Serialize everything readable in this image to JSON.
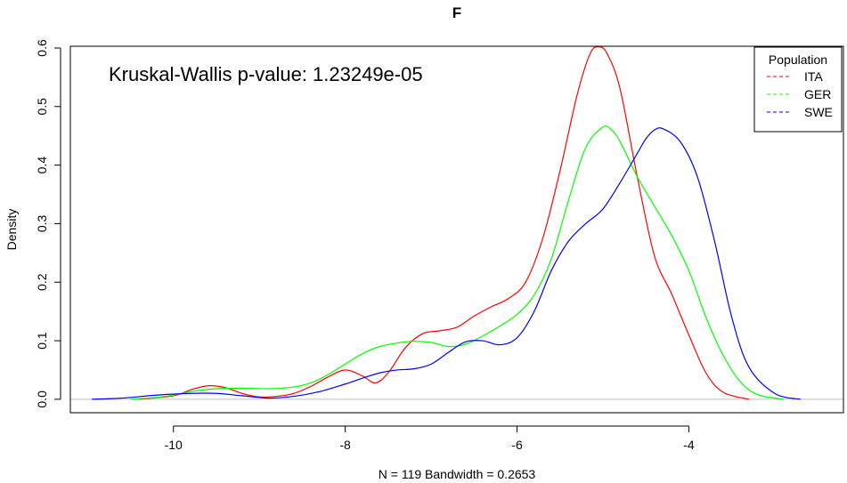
{
  "chart_data": {
    "type": "line",
    "title": "F",
    "xlabel": "N = 119   Bandwidth = 0.2653",
    "ylabel": "Density",
    "xlim": [
      -11.2,
      -2.2
    ],
    "ylim": [
      -0.023,
      0.603
    ],
    "xticks": [
      -10,
      -8,
      -6,
      -4
    ],
    "yticks": [
      0.0,
      0.1,
      0.2,
      0.3,
      0.4,
      0.5,
      0.6
    ],
    "xtick_labels": [
      "-10",
      "-8",
      "-6",
      "-4"
    ],
    "ytick_labels": [
      "0.0",
      "0.1",
      "0.2",
      "0.3",
      "0.4",
      "0.5",
      "0.6"
    ],
    "annotation": "Kruskal-Wallis p-value: 1.23249e-05",
    "grid": false,
    "legend": {
      "title": "Population",
      "placement": "top-right",
      "entries": [
        "ITA",
        "GER",
        "SWE"
      ]
    },
    "series": [
      {
        "name": "ITA",
        "color": "#ff0000",
        "x": [
          -10.4,
          -10.0,
          -9.8,
          -9.6,
          -9.4,
          -9.2,
          -9.0,
          -8.8,
          -8.6,
          -8.4,
          -8.2,
          -8.0,
          -7.8,
          -7.65,
          -7.5,
          -7.3,
          -7.1,
          -6.9,
          -6.7,
          -6.5,
          -6.3,
          -6.1,
          -5.9,
          -5.7,
          -5.5,
          -5.3,
          -5.15,
          -5.05,
          -4.95,
          -4.8,
          -4.6,
          -4.4,
          -4.2,
          -4.0,
          -3.8,
          -3.6,
          -3.3
        ],
        "y": [
          0.0,
          0.006,
          0.016,
          0.023,
          0.02,
          0.01,
          0.004,
          0.005,
          0.01,
          0.022,
          0.038,
          0.05,
          0.04,
          0.028,
          0.045,
          0.088,
          0.112,
          0.117,
          0.123,
          0.142,
          0.158,
          0.172,
          0.2,
          0.275,
          0.39,
          0.52,
          0.59,
          0.602,
          0.59,
          0.53,
          0.38,
          0.245,
          0.18,
          0.11,
          0.045,
          0.012,
          0.0
        ]
      },
      {
        "name": "GER",
        "color": "#00ff00",
        "x": [
          -10.5,
          -10.2,
          -10.0,
          -9.8,
          -9.5,
          -9.2,
          -8.9,
          -8.6,
          -8.4,
          -8.2,
          -8.0,
          -7.8,
          -7.6,
          -7.4,
          -7.2,
          -7.0,
          -6.8,
          -6.6,
          -6.4,
          -6.2,
          -6.0,
          -5.8,
          -5.6,
          -5.4,
          -5.2,
          -5.0,
          -4.9,
          -4.8,
          -4.6,
          -4.4,
          -4.2,
          -4.0,
          -3.8,
          -3.6,
          -3.4,
          -3.2,
          -2.9
        ],
        "y": [
          0.0,
          0.003,
          0.007,
          0.013,
          0.018,
          0.019,
          0.018,
          0.021,
          0.028,
          0.042,
          0.06,
          0.078,
          0.09,
          0.096,
          0.099,
          0.097,
          0.09,
          0.094,
          0.108,
          0.125,
          0.145,
          0.178,
          0.24,
          0.34,
          0.43,
          0.465,
          0.46,
          0.44,
          0.38,
          0.33,
          0.28,
          0.22,
          0.14,
          0.075,
          0.03,
          0.008,
          0.0
        ]
      },
      {
        "name": "SWE",
        "color": "#0000ff",
        "x": [
          -10.95,
          -10.6,
          -10.2,
          -9.8,
          -9.5,
          -9.2,
          -8.9,
          -8.6,
          -8.3,
          -8.0,
          -7.8,
          -7.6,
          -7.4,
          -7.2,
          -7.0,
          -6.8,
          -6.6,
          -6.4,
          -6.2,
          -6.0,
          -5.8,
          -5.6,
          -5.4,
          -5.2,
          -5.0,
          -4.8,
          -4.6,
          -4.5,
          -4.4,
          -4.3,
          -4.1,
          -3.9,
          -3.7,
          -3.5,
          -3.3,
          -3.0,
          -2.7
        ],
        "y": [
          0.0,
          0.002,
          0.007,
          0.01,
          0.01,
          0.006,
          0.002,
          0.005,
          0.013,
          0.026,
          0.036,
          0.045,
          0.05,
          0.052,
          0.06,
          0.08,
          0.098,
          0.1,
          0.093,
          0.105,
          0.15,
          0.22,
          0.27,
          0.3,
          0.325,
          0.37,
          0.42,
          0.445,
          0.46,
          0.462,
          0.44,
          0.38,
          0.27,
          0.14,
          0.055,
          0.01,
          0.0
        ]
      }
    ]
  }
}
